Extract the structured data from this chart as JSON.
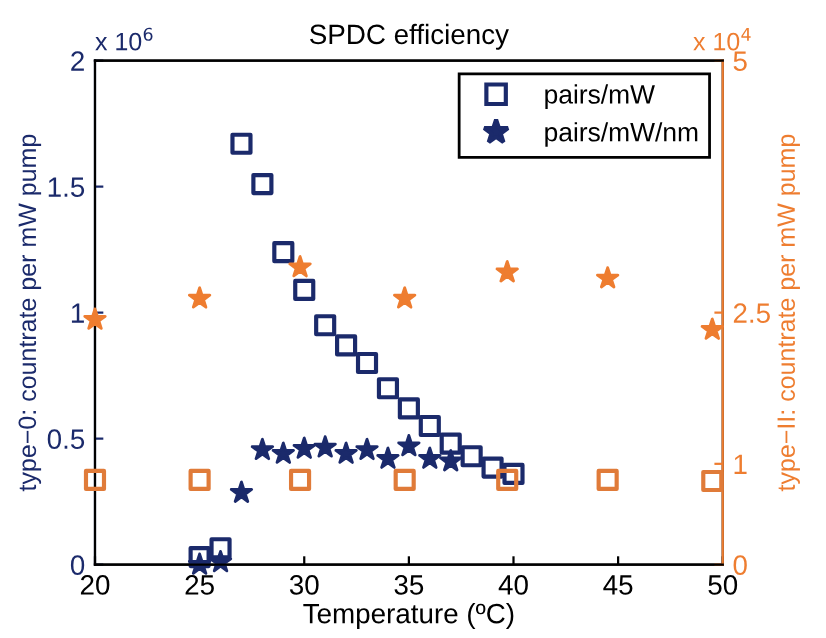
{
  "chart_data": {
    "type": "scatter",
    "title": "SPDC efficiency",
    "xlabel": "Temperature (ºC)",
    "ylabel": "type−0: countrate per mW pump",
    "y2label": "type−II: countrate per mW pump",
    "annotations": [
      "x 10$^{6}$",
      "x 10$^{4}$"
    ],
    "xlim": [
      20,
      50
    ],
    "xticks": [
      20,
      25,
      30,
      35,
      40,
      45,
      50
    ],
    "ylim": [
      0,
      2
    ],
    "yticks": [
      0,
      0.5,
      1,
      1.5,
      2
    ],
    "y2lim": [
      0,
      5
    ],
    "y2ticks": [
      0,
      1,
      2.5,
      5
    ],
    "grid": false,
    "legend": "top right",
    "series": [
      {
        "name": "pairs/mW",
        "color": "#1b2a6b",
        "marker": "square",
        "x": [
          25,
          26,
          27,
          28,
          29,
          30,
          31,
          32,
          33,
          34,
          35,
          36,
          37,
          38,
          39,
          40
        ],
        "values": [
          0.03,
          0.065,
          1.67,
          1.51,
          1.24,
          1.09,
          0.95,
          0.87,
          0.8,
          0.7,
          0.62,
          0.55,
          0.48,
          0.43,
          0.385,
          0.36
        ]
      },
      {
        "name": "pairs/mW/nm",
        "color": "#1b2a6b",
        "marker": "star",
        "x": [
          25,
          26,
          27,
          28,
          29,
          30,
          31,
          32,
          33,
          34,
          35,
          36,
          37
        ],
        "values": [
          0.0,
          0.01,
          0.285,
          0.455,
          0.44,
          0.46,
          0.465,
          0.44,
          0.455,
          0.42,
          0.47,
          0.42,
          0.41
        ]
      },
      {
        "color": "#ee7d30",
        "marker": "star",
        "axis": "y2",
        "x": [
          20,
          25,
          29.8,
          34.8,
          39.7,
          44.5,
          49.5
        ],
        "values": [
          2.43,
          2.64,
          2.95,
          2.64,
          2.9,
          2.84,
          2.33
        ]
      },
      {
        "color": "#e07b39",
        "marker": "square",
        "axis": "y2",
        "x": [
          20,
          25,
          29.8,
          34.8,
          39.7,
          44.5,
          49.5
        ],
        "values": [
          0.84,
          0.84,
          0.84,
          0.84,
          0.84,
          0.84,
          0.83
        ]
      }
    ]
  }
}
